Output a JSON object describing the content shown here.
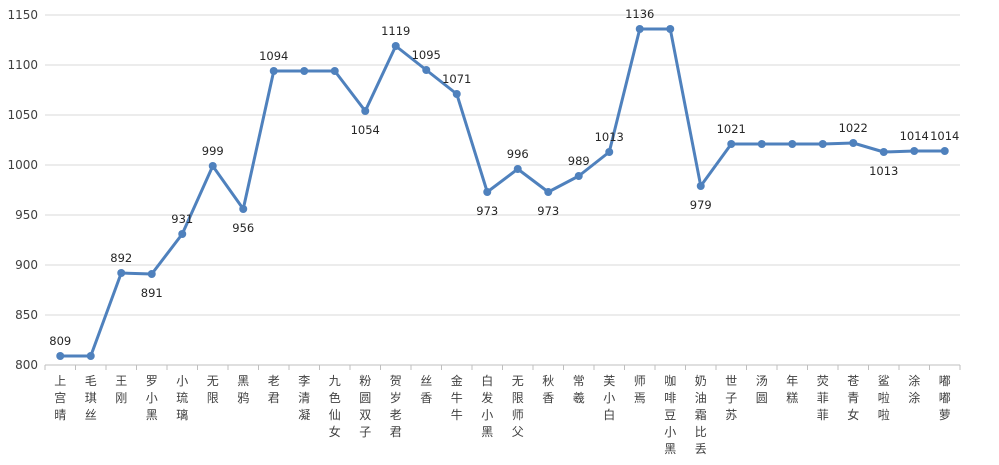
{
  "chart_data": {
    "type": "line",
    "title": "",
    "xlabel": "",
    "ylabel": "",
    "ylim": [
      800,
      1150
    ],
    "yticks": [
      800,
      850,
      900,
      950,
      1000,
      1050,
      1100,
      1150
    ],
    "grid": true,
    "legend": "none",
    "categories": [
      "上宫晴",
      "毛琪丝",
      "王刚",
      "罗小黑",
      "小琉璃",
      "无限",
      "黑鸦",
      "老君",
      "李清凝",
      "九色仙女",
      "粉圆双子",
      "贺岁老君",
      "丝香",
      "金牛牛",
      "白发小黑",
      "无限师父",
      "秋香",
      "常羲",
      "芙小白",
      "师焉",
      "咖啡豆小黑",
      "奶油霜比丢",
      "世子苏",
      "汤圆",
      "年糕",
      "荧菲菲",
      "苍青女",
      "鲨啦啦",
      "涂涂",
      "嘟嘟萝"
    ],
    "series": [
      {
        "color": "#4f81bd",
        "values": [
          809,
          809,
          892,
          891,
          931,
          999,
          956,
          1094,
          1094,
          1094,
          1054,
          1119,
          1095,
          1071,
          973,
          996,
          973,
          989,
          1013,
          1136,
          1136,
          979,
          1021,
          1021,
          1021,
          1021,
          1022,
          1013,
          1014,
          1014
        ],
        "data_labels": [
          "809",
          "",
          "892",
          "891",
          "931",
          "999",
          "956",
          "1094",
          "",
          "",
          "1054",
          "1119",
          "1095",
          "1071",
          "973",
          "996",
          "973",
          "989",
          "1013",
          "1136",
          "",
          "979",
          "1021",
          "",
          "",
          "",
          "1022",
          "1013",
          "1014",
          "1014"
        ]
      }
    ]
  }
}
